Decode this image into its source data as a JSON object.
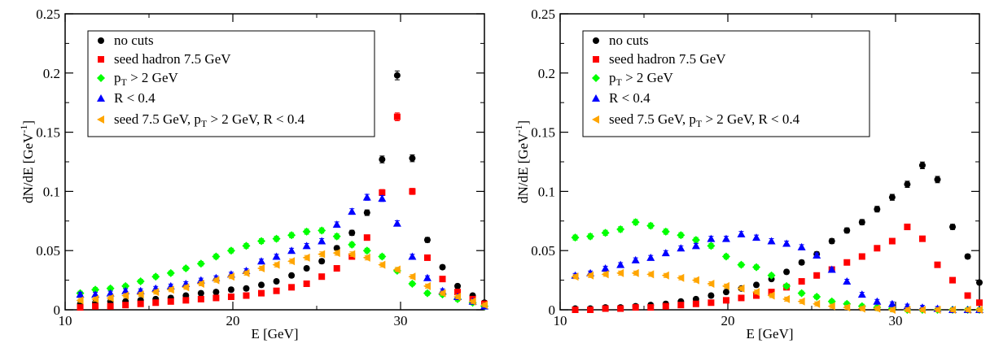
{
  "chart_data": [
    {
      "type": "scatter",
      "xlabel": "E [GeV]",
      "ylabel": "dN/dE [GeV⁻¹]",
      "xlim": [
        10,
        35
      ],
      "ylim": [
        0,
        0.25
      ],
      "xticks": [
        "10",
        "20",
        "30"
      ],
      "yticks": [
        "0",
        "0.05",
        "0.1",
        "0.15",
        "0.2",
        "0.25"
      ],
      "grid": false,
      "legend_position": "top-left",
      "x": [
        10.9,
        11.8,
        12.7,
        13.6,
        14.5,
        15.4,
        16.3,
        17.2,
        18.1,
        19.0,
        19.9,
        20.8,
        21.7,
        22.6,
        23.5,
        24.4,
        25.3,
        26.2,
        27.1,
        28.0,
        28.9,
        29.8,
        30.7,
        31.6,
        32.5,
        33.4,
        34.3,
        35.2
      ],
      "series": [
        {
          "name": "no cuts",
          "color": "#000000",
          "marker": "circle",
          "values": [
            0.005,
            0.006,
            0.007,
            0.007,
            0.008,
            0.009,
            0.01,
            0.012,
            0.014,
            0.015,
            0.017,
            0.018,
            0.021,
            0.024,
            0.029,
            0.035,
            0.041,
            0.052,
            0.065,
            0.082,
            0.127,
            0.198,
            0.128,
            0.059,
            0.036,
            0.02,
            0.012,
            0.006
          ]
        },
        {
          "name": "seed hadron 7.5 GeV",
          "color": "#ff0000",
          "marker": "square",
          "values": [
            0.002,
            0.003,
            0.003,
            0.004,
            0.005,
            0.006,
            0.007,
            0.008,
            0.009,
            0.01,
            0.011,
            0.012,
            0.014,
            0.016,
            0.019,
            0.022,
            0.028,
            0.035,
            0.045,
            0.061,
            0.099,
            0.163,
            0.1,
            0.044,
            0.026,
            0.015,
            0.009,
            0.005
          ]
        },
        {
          "name": "p_T > 2 GeV",
          "color": "#00ff00",
          "marker": "diamond",
          "values": [
            0.014,
            0.017,
            0.018,
            0.02,
            0.024,
            0.028,
            0.031,
            0.035,
            0.039,
            0.045,
            0.05,
            0.054,
            0.058,
            0.06,
            0.063,
            0.066,
            0.067,
            0.062,
            0.055,
            0.05,
            0.045,
            0.033,
            0.022,
            0.014,
            0.013,
            0.009,
            0.006,
            0.003
          ]
        },
        {
          "name": "R < 0.4",
          "color": "#0000ff",
          "marker": "triangle-up",
          "values": [
            0.013,
            0.013,
            0.014,
            0.016,
            0.016,
            0.018,
            0.02,
            0.022,
            0.025,
            0.027,
            0.03,
            0.033,
            0.041,
            0.045,
            0.05,
            0.054,
            0.058,
            0.072,
            0.083,
            0.095,
            0.094,
            0.073,
            0.045,
            0.027,
            0.016,
            0.011,
            0.007,
            0.003
          ]
        },
        {
          "name": "seed 7.5 GeV, p_T > 2 GeV, R < 0.4",
          "color": "#ffa500",
          "marker": "triangle-left",
          "values": [
            0.008,
            0.009,
            0.01,
            0.012,
            0.013,
            0.015,
            0.017,
            0.019,
            0.022,
            0.025,
            0.028,
            0.031,
            0.035,
            0.038,
            0.041,
            0.044,
            0.047,
            0.048,
            0.047,
            0.044,
            0.038,
            0.034,
            0.028,
            0.02,
            0.014,
            0.011,
            0.007,
            0.004
          ]
        }
      ]
    },
    {
      "type": "scatter",
      "xlabel": "E [GeV]",
      "ylabel": "dN/dE [GeV⁻¹]",
      "xlim": [
        10,
        35
      ],
      "ylim": [
        0,
        0.25
      ],
      "xticks": [
        "10",
        "20",
        "30"
      ],
      "yticks": [
        "0",
        "0.05",
        "0.1",
        "0.15",
        "0.2",
        "0.25"
      ],
      "grid": false,
      "legend_position": "top-left",
      "x": [
        10.9,
        11.8,
        12.7,
        13.6,
        14.5,
        15.4,
        16.3,
        17.2,
        18.1,
        19.0,
        19.9,
        20.8,
        21.7,
        22.6,
        23.5,
        24.4,
        25.3,
        26.2,
        27.1,
        28.0,
        28.9,
        29.8,
        30.7,
        31.6,
        32.5,
        33.4,
        34.3,
        35.2
      ],
      "series": [
        {
          "name": "no cuts",
          "color": "#000000",
          "marker": "circle",
          "values": [
            0.001,
            0.001,
            0.002,
            0.002,
            0.003,
            0.004,
            0.005,
            0.007,
            0.009,
            0.012,
            0.015,
            0.018,
            0.021,
            0.026,
            0.032,
            0.04,
            0.047,
            0.058,
            0.067,
            0.074,
            0.085,
            0.095,
            0.106,
            0.122,
            0.11,
            0.07,
            0.045,
            0.023
          ]
        },
        {
          "name": "seed hadron 7.5 GeV",
          "color": "#ff0000",
          "marker": "square",
          "values": [
            0.0,
            0.0,
            0.001,
            0.001,
            0.002,
            0.002,
            0.003,
            0.004,
            0.005,
            0.006,
            0.008,
            0.01,
            0.012,
            0.015,
            0.019,
            0.024,
            0.029,
            0.034,
            0.04,
            0.045,
            0.052,
            0.058,
            0.07,
            0.06,
            0.038,
            0.025,
            0.012,
            0.006
          ]
        },
        {
          "name": "p_T > 2 GeV",
          "color": "#00ff00",
          "marker": "diamond",
          "values": [
            0.061,
            0.062,
            0.065,
            0.068,
            0.074,
            0.071,
            0.066,
            0.063,
            0.059,
            0.054,
            0.045,
            0.038,
            0.036,
            0.029,
            0.02,
            0.014,
            0.011,
            0.007,
            0.005,
            0.003,
            0.002,
            0.001,
            0.0,
            0.0,
            0.0,
            0.0,
            0.0,
            0.0
          ]
        },
        {
          "name": "R < 0.4",
          "color": "#0000ff",
          "marker": "triangle-up",
          "values": [
            0.029,
            0.031,
            0.035,
            0.038,
            0.042,
            0.044,
            0.048,
            0.052,
            0.054,
            0.06,
            0.06,
            0.064,
            0.061,
            0.058,
            0.056,
            0.053,
            0.046,
            0.034,
            0.024,
            0.013,
            0.007,
            0.005,
            0.003,
            0.002,
            0.001,
            0.0,
            0.0,
            0.0
          ]
        },
        {
          "name": "seed 7.5 GeV, p_T > 2 GeV, R < 0.4",
          "color": "#ffa500",
          "marker": "triangle-left",
          "values": [
            0.028,
            0.029,
            0.03,
            0.031,
            0.031,
            0.03,
            0.029,
            0.027,
            0.025,
            0.022,
            0.02,
            0.018,
            0.015,
            0.012,
            0.009,
            0.007,
            0.005,
            0.003,
            0.002,
            0.001,
            0.001,
            0.0,
            0.0,
            0.0,
            0.0,
            0.0,
            0.0,
            0.0
          ]
        }
      ]
    }
  ]
}
